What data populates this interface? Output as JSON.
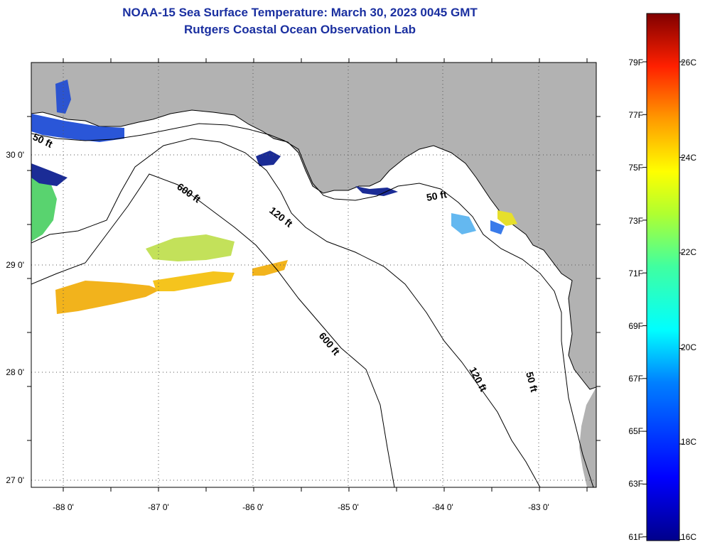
{
  "title": {
    "line1": "NOAA-15 Sea Surface Temperature:  March 30, 2023 0045 GMT",
    "line2": "Rutgers Coastal Ocean Observation Lab"
  },
  "map": {
    "lon_labels": [
      "-88 0'",
      "-87 0'",
      "-86 0'",
      "-85 0'",
      "-84 0'",
      "-83 0'"
    ],
    "lat_labels": [
      "30 0'",
      "29 0'",
      "28 0'",
      "27 0'"
    ],
    "contour_labels": [
      "50 ft",
      "600 ft",
      "120 ft",
      "50 ft",
      "600 ft",
      "120 ft",
      "50 ft"
    ],
    "colors": {
      "land": "#b2b2b2",
      "ocean": "#ffffff",
      "contour": "#000000"
    }
  },
  "colorbar": {
    "f_labels": [
      "79F",
      "77F",
      "75F",
      "73F",
      "71F",
      "69F",
      "67F",
      "65F",
      "63F",
      "61F"
    ],
    "c_labels": [
      "26C",
      "24C",
      "22C",
      "20C",
      "18C",
      "16C"
    ]
  }
}
